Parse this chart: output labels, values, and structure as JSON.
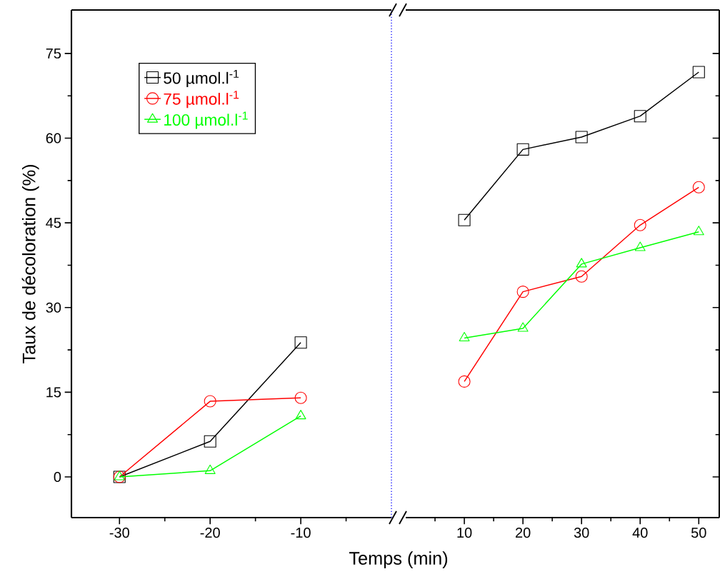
{
  "chart_data": [
    {
      "type": "line",
      "ylabel": "Taux de décoloration (%)",
      "xlabel": "Temps (min)",
      "x": [
        -30,
        -20,
        -10
      ],
      "series": [
        {
          "name": "50 µmol.l$^{-1}$",
          "color": "#000000",
          "marker": "square",
          "values": [
            0,
            6.3,
            23.8
          ]
        },
        {
          "name": "75 µmol.l$^{-1}$",
          "color": "#ff0000",
          "marker": "circle",
          "values": [
            0,
            13.4,
            14.0
          ]
        },
        {
          "name": "100 µmol.l$^{-1}$",
          "color": "#00ff00",
          "marker": "triangle",
          "values": [
            0,
            1.1,
            10.8
          ]
        }
      ],
      "xlim": [
        -35.3,
        0
      ],
      "ylim": [
        -7.2,
        82.7
      ],
      "xticks": [
        -30,
        {
          "value": -25,
          "label": null
        },
        -20,
        {
          "value": -15,
          "label": null
        },
        -10,
        {
          "value": -5,
          "label": null
        }
      ],
      "yticks": [
        0,
        {
          "value": 7.5,
          "label": null
        },
        15,
        {
          "value": 22.5,
          "label": null
        },
        30,
        {
          "value": 37.5,
          "label": null
        },
        45,
        {
          "value": 52.5,
          "label": null
        },
        60,
        {
          "value": 67.5,
          "label": null
        },
        75
      ],
      "ref_lines": [
        {
          "axis": "x",
          "value": 0,
          "color": "#0000ff",
          "line_style": "dotted"
        }
      ],
      "legend": "top left",
      "grid": false
    },
    {
      "type": "line",
      "x": [
        10,
        20,
        30,
        40,
        50
      ],
      "series": [
        {
          "color": "#000000",
          "marker": "square",
          "values": [
            45.5,
            58.0,
            60.2,
            63.9,
            71.7
          ]
        },
        {
          "color": "#ff0000",
          "marker": "circle",
          "values": [
            16.9,
            32.8,
            35.5,
            44.6,
            51.3
          ]
        },
        {
          "color": "#00ff00",
          "marker": "triangle",
          "values": [
            24.6,
            26.3,
            37.7,
            40.6,
            43.4
          ]
        }
      ],
      "xlim": [
        0,
        53.5
      ],
      "ylim": [
        -7.2,
        82.7
      ],
      "xticks": [
        {
          "value": 5,
          "label": null
        },
        10,
        {
          "value": 15,
          "label": null
        },
        20,
        {
          "value": 25,
          "label": null
        },
        30,
        {
          "value": 35,
          "label": null
        },
        40,
        {
          "value": 45,
          "label": null
        },
        50
      ],
      "yticks": [
        0,
        {
          "value": 7.5,
          "label": null
        },
        15,
        {
          "value": 22.5,
          "label": null
        },
        30,
        {
          "value": 37.5,
          "label": null
        },
        45,
        {
          "value": 52.5,
          "label": null
        },
        60,
        {
          "value": 67.5,
          "label": null
        },
        75
      ],
      "tick_labels": "x",
      "grid": false
    }
  ]
}
